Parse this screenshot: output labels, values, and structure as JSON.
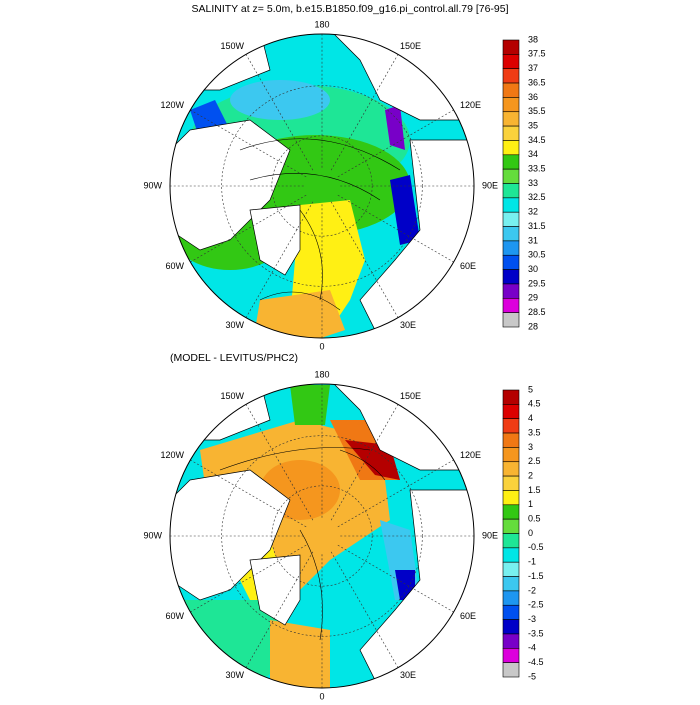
{
  "panels": [
    {
      "title": "SALINITY at z=   5.0m, b.e15.B1850.f09_g16.pi_control.all.79 [76-95]",
      "lon_labels": [
        "180",
        "150E",
        "120E",
        "90E",
        "60E",
        "30E",
        "0",
        "30W",
        "60W",
        "90W",
        "120W",
        "150W"
      ],
      "colorbar": {
        "labels": [
          38,
          37.5,
          37,
          36.5,
          36,
          35.5,
          35,
          34.5,
          34,
          33.5,
          33,
          32.5,
          32,
          31.5,
          31,
          30.5,
          30,
          29.5,
          29,
          28.5,
          28
        ],
        "colors": [
          "#b40000",
          "#dc0000",
          "#f03c14",
          "#f07814",
          "#f5961e",
          "#f8b432",
          "#fad23c",
          "#fff014",
          "#32c814",
          "#64dc3c",
          "#1ee696",
          "#00e6e6",
          "#78f0f0",
          "#3cc8f0",
          "#1e96f0",
          "#0050f0",
          "#0000c8",
          "#7800c8",
          "#dc00dc",
          "#c8c8c8",
          "#787878"
        ]
      }
    },
    {
      "title": "(MODEL - LEVITUS/PHC2)",
      "lon_labels": [
        "180",
        "150E",
        "120E",
        "90E",
        "60E",
        "30E",
        "0",
        "30W",
        "60W",
        "90W",
        "120W",
        "150W"
      ],
      "colorbar": {
        "labels": [
          5,
          4.5,
          4,
          3.5,
          3,
          2.5,
          2,
          1.5,
          1,
          0.5,
          0,
          -0.5,
          -1,
          -1.5,
          -2,
          -2.5,
          -3,
          -3.5,
          -4,
          -4.5,
          -5
        ],
        "colors": [
          "#b40000",
          "#dc0000",
          "#f03c14",
          "#f07814",
          "#f5961e",
          "#f8b432",
          "#fad23c",
          "#fff014",
          "#32c814",
          "#64dc3c",
          "#1ee696",
          "#00e6e6",
          "#78f0f0",
          "#3cc8f0",
          "#1e96f0",
          "#0050f0",
          "#0000c8",
          "#7800c8",
          "#dc00dc",
          "#c8c8c8",
          "#787878"
        ]
      }
    }
  ]
}
